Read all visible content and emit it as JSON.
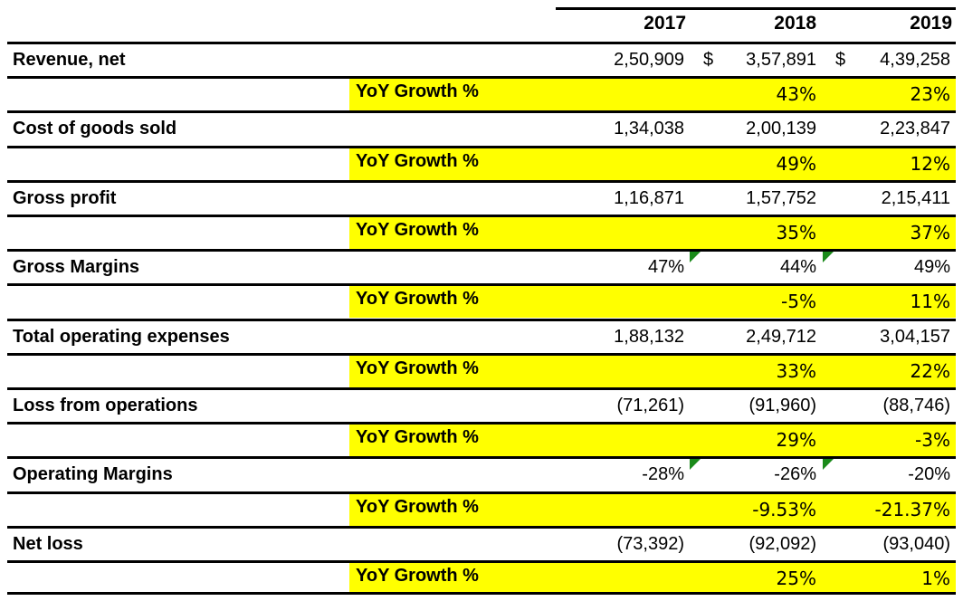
{
  "header": {
    "years": [
      "2017",
      "2018",
      "2019"
    ]
  },
  "rows": [
    {
      "label": "Revenue, net",
      "type": "data",
      "dollar": true,
      "values": [
        "2,50,909",
        "3,57,891",
        "4,39,258"
      ]
    },
    {
      "label": "YoY Growth %",
      "type": "yoy",
      "values": [
        "",
        "43%",
        "23%"
      ]
    },
    {
      "label": "Cost of goods sold",
      "type": "data",
      "values": [
        "1,34,038",
        "2,00,139",
        "2,23,847"
      ]
    },
    {
      "label": "YoY Growth %",
      "type": "yoy",
      "values": [
        "",
        "49%",
        "12%"
      ]
    },
    {
      "label": "Gross profit",
      "type": "data",
      "values": [
        "1,16,871",
        "1,57,752",
        "2,15,411"
      ]
    },
    {
      "label": "YoY Growth %",
      "type": "yoy",
      "values": [
        "",
        "35%",
        "37%"
      ]
    },
    {
      "label": "Gross Margins",
      "type": "data",
      "comment": true,
      "values": [
        "47%",
        "44%",
        "49%"
      ]
    },
    {
      "label": "YoY Growth %",
      "type": "yoy",
      "values": [
        "",
        "-5%",
        "11%"
      ]
    },
    {
      "label": "Total operating expenses",
      "type": "data",
      "values": [
        "1,88,132",
        "2,49,712",
        "3,04,157"
      ]
    },
    {
      "label": "YoY Growth %",
      "type": "yoy",
      "values": [
        "",
        "33%",
        "22%"
      ]
    },
    {
      "label": "Loss from operations",
      "type": "data",
      "values": [
        "(71,261)",
        "(91,960)",
        "(88,746)"
      ]
    },
    {
      "label": "YoY Growth %",
      "type": "yoy",
      "values": [
        "",
        "29%",
        "-3%"
      ]
    },
    {
      "label": "Operating Margins",
      "type": "data",
      "comment": true,
      "values": [
        "-28%",
        "-26%",
        "-20%"
      ]
    },
    {
      "label": "YoY Growth %",
      "type": "yoy",
      "values": [
        "",
        "-9.53%",
        "-21.37%"
      ]
    },
    {
      "label": "Net loss",
      "type": "data",
      "values": [
        "(73,392)",
        "(92,092)",
        "(93,040)"
      ]
    },
    {
      "label": "YoY Growth %",
      "type": "yoy",
      "values": [
        "",
        "25%",
        "1%"
      ]
    }
  ],
  "currency_symbol": "$",
  "colors": {
    "highlight": "#ffff00",
    "comment_marker": "#1a8a1a",
    "border": "#000000"
  }
}
